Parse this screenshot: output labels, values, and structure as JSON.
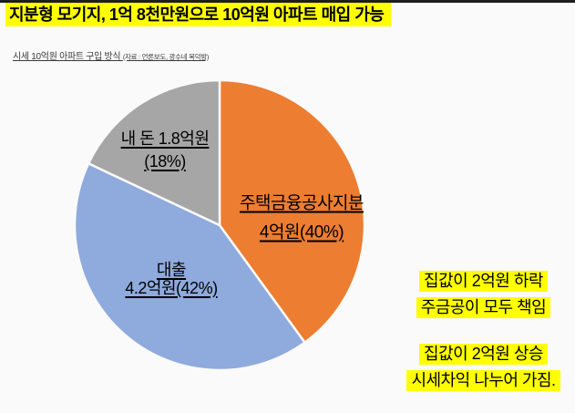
{
  "title": "지분형 모기지, 1억 8천만원으로 10억원 아파트 매입 가능",
  "subtitle": {
    "main": "시세 10억원 아파트 구입 방식 ",
    "source": "(자료 : 언론보도, 광수네 복덕방)"
  },
  "chart_data": {
    "type": "pie",
    "title": "시세 10억원 아파트 구입 방식",
    "start_angle_deg": 0,
    "direction": "clockwise",
    "labels_inside": true,
    "segments": [
      {
        "label": "주택금융공사지분",
        "value_label": "4억원(40%)",
        "value": 40,
        "color": "#ED7D31"
      },
      {
        "label": "대출",
        "value_label": "4.2억원(42%)",
        "value": 42,
        "color": "#8FAADC"
      },
      {
        "label": "내 돈 1.8억원",
        "value_label": "(18%)",
        "value": 18,
        "color": "#A6A6A6"
      }
    ]
  },
  "callouts": [
    {
      "lines": [
        "집값이 2억원 하락",
        "주금공이 모두 책임"
      ]
    },
    {
      "lines": [
        "집값이 2억원 상승",
        "시세차익 나누어 가짐."
      ]
    }
  ],
  "colors": {
    "highlight": "#FFFF00",
    "orange": "#ED7D31",
    "blue": "#8FAADC",
    "gray": "#A6A6A6",
    "background": "#FAFAFA",
    "top_strip": "#1E1E1E",
    "text": "#000000"
  }
}
